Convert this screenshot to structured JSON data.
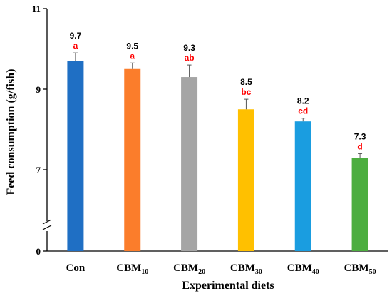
{
  "chart_data": {
    "type": "bar",
    "xlabel": "Experimental diets",
    "ylabel": "Feed consumption (g/fish)",
    "ylim": [
      0,
      11
    ],
    "axis_break": true,
    "yticks": [
      {
        "value": 0,
        "label": "0"
      },
      {
        "value": 7,
        "label": "7"
      },
      {
        "value": 9,
        "label": "9"
      },
      {
        "value": 11,
        "label": "11"
      }
    ],
    "categories": [
      {
        "base": "Con",
        "sub": ""
      },
      {
        "base": "CBM",
        "sub": "10"
      },
      {
        "base": "CBM",
        "sub": "20"
      },
      {
        "base": "CBM",
        "sub": "30"
      },
      {
        "base": "CBM",
        "sub": "40"
      },
      {
        "base": "CBM",
        "sub": "50"
      }
    ],
    "values": [
      9.7,
      9.5,
      9.3,
      8.5,
      8.2,
      7.3
    ],
    "value_labels": [
      "9.7",
      "9.5",
      "9.3",
      "8.5",
      "8.2",
      "7.3"
    ],
    "errors": [
      0.2,
      0.15,
      0.3,
      0.25,
      0.08,
      0.1
    ],
    "significance": [
      "a",
      "a",
      "ab",
      "bc",
      "cd",
      "d"
    ],
    "colors": [
      "#1f6fc4",
      "#fb7d2b",
      "#a5a5a5",
      "#ffc000",
      "#1a9de0",
      "#4cae3f"
    ],
    "significance_color": "#ff0000",
    "grid": false,
    "legend": "none"
  }
}
